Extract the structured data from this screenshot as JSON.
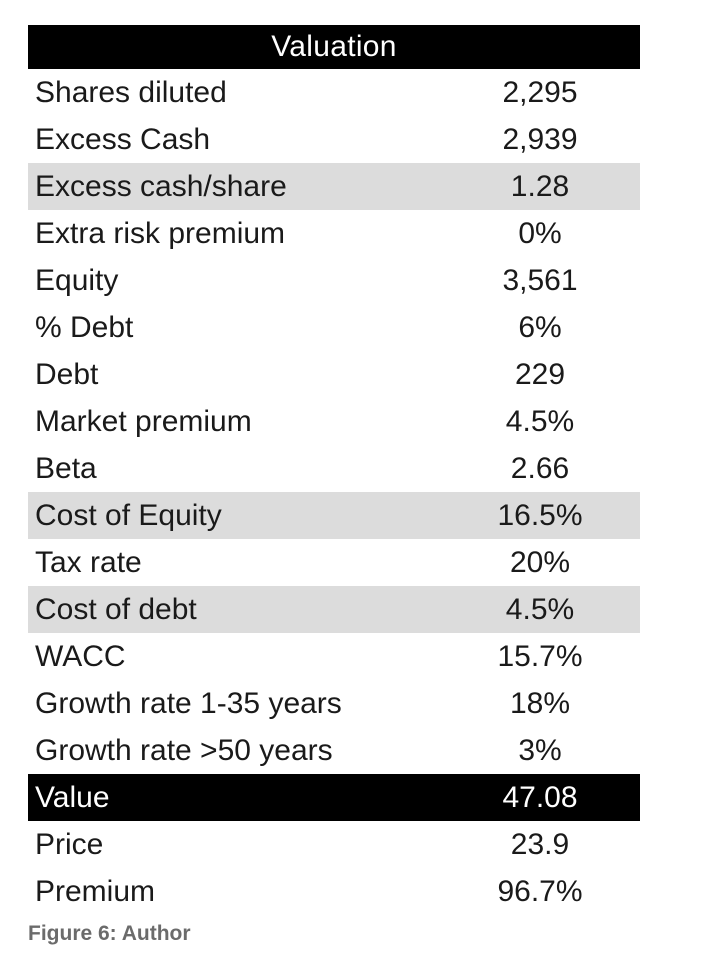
{
  "table": {
    "title": "Valuation",
    "rows": [
      {
        "label": "Shares diluted",
        "value": "2,295"
      },
      {
        "label": "Excess Cash",
        "value": "2,939"
      },
      {
        "label": "Excess cash/share",
        "value": "1.28"
      },
      {
        "label": "Extra risk premium",
        "value": "0%"
      },
      {
        "label": "Equity",
        "value": "3,561"
      },
      {
        "label": "% Debt",
        "value": "6%"
      },
      {
        "label": "Debt",
        "value": "229"
      },
      {
        "label": "Market premium",
        "value": "4.5%"
      },
      {
        "label": "Beta",
        "value": "2.66"
      },
      {
        "label": "Cost of Equity",
        "value": "16.5%"
      },
      {
        "label": "Tax rate",
        "value": "20%"
      },
      {
        "label": "Cost of debt",
        "value": "4.5%"
      },
      {
        "label": "WACC",
        "value": "15.7%"
      },
      {
        "label": "Growth rate 1-35 years",
        "value": "18%"
      },
      {
        "label": "Growth rate >50 years",
        "value": "3%"
      },
      {
        "label": "Value",
        "value": "47.08"
      },
      {
        "label": "Price",
        "value": "23.9"
      },
      {
        "label": "Premium",
        "value": "96.7%"
      }
    ]
  },
  "caption": "Figure 6: Author",
  "colors": {
    "header_bg": "#000000",
    "header_text": "#ffffff",
    "shaded_row": "#dcdcdc",
    "caption_text": "#6b6b6b"
  }
}
